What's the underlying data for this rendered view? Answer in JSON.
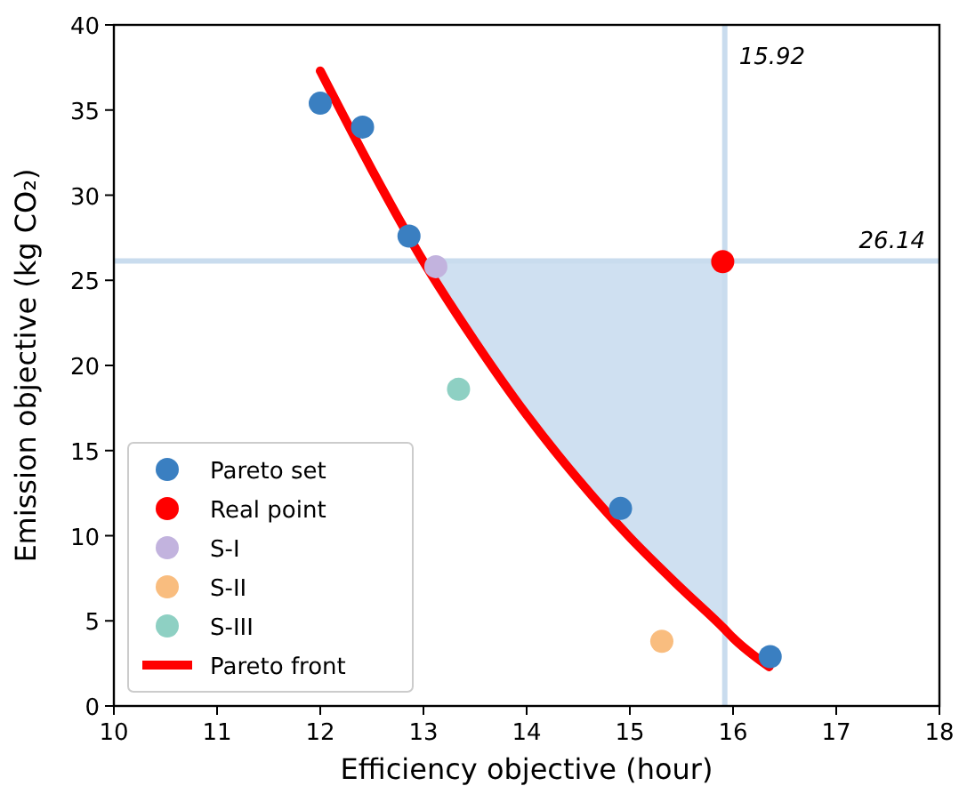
{
  "chart_data": {
    "type": "scatter",
    "xlabel": "Efficiency objective (hour)",
    "ylabel": "Emission objective (kg CO₂)",
    "xlim": [
      10,
      18
    ],
    "xticks": [
      10,
      11,
      12,
      13,
      14,
      15,
      16,
      17,
      18
    ],
    "ylim": [
      0,
      40
    ],
    "yticks": [
      0,
      5,
      10,
      15,
      20,
      25,
      30,
      35,
      40
    ],
    "grid": false,
    "legend": "bottom left",
    "marker": "circle",
    "series": [
      {
        "name": "Pareto set",
        "color": "#3a7fc1",
        "x": [
          12.0,
          12.41,
          12.86,
          14.91,
          16.36
        ],
        "values": [
          35.4,
          34.0,
          27.6,
          11.6,
          2.9
        ]
      },
      {
        "name": "Real point",
        "color": "#ff0000",
        "x": [
          15.9
        ],
        "values": [
          26.1
        ]
      },
      {
        "name": "S-I",
        "color": "#c2b3de",
        "x": [
          13.12
        ],
        "values": [
          25.8
        ]
      },
      {
        "name": "S-II",
        "color": "#f9bd7f",
        "x": [
          15.31
        ],
        "values": [
          3.8
        ]
      },
      {
        "name": "S-III",
        "color": "#8ed0c3",
        "x": [
          13.34
        ],
        "values": [
          18.6
        ]
      },
      {
        "name": "Pareto front",
        "type": "line",
        "color": "#ff0000",
        "line_style": "solid",
        "marker": "none",
        "x": [
          12.0,
          12.5,
          13.0,
          13.5,
          14.0,
          14.5,
          15.0,
          15.5,
          15.92,
          16.0,
          16.35
        ],
        "values": [
          37.3,
          31.5,
          26.1,
          21.4,
          17.1,
          13.3,
          9.9,
          6.9,
          4.5,
          4.0,
          2.3
        ],
        "lower": [
          null,
          null,
          26.1,
          21.4,
          17.1,
          13.3,
          9.9,
          6.9,
          4.5,
          null,
          null
        ],
        "upper": [
          null,
          null,
          26.1,
          26.1,
          26.1,
          26.1,
          26.1,
          26.1,
          26.1,
          null,
          null
        ]
      }
    ],
    "ref_lines": [
      {
        "axis": "x",
        "value": 15.92,
        "label": "15.92",
        "color": "#c9dcee"
      },
      {
        "axis": "y",
        "value": 26.14,
        "label": "26.14",
        "color": "#c9dcee"
      }
    ]
  }
}
